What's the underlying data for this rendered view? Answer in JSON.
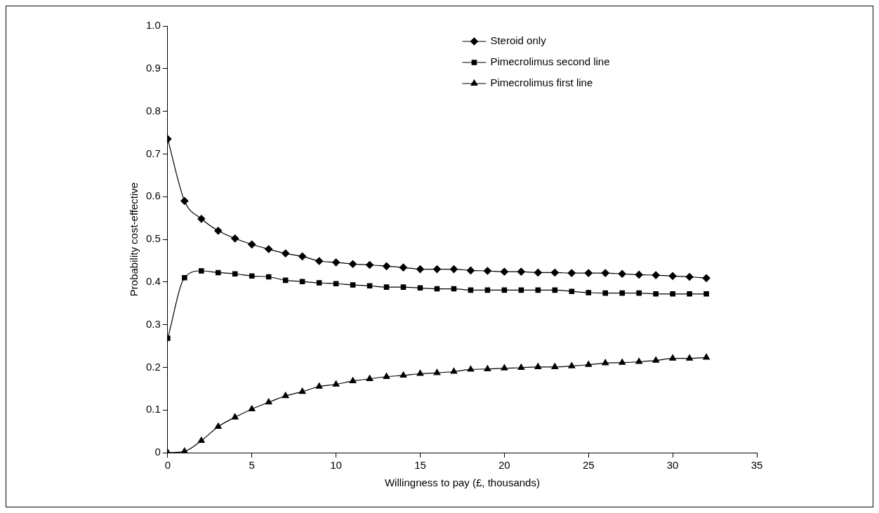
{
  "chart_data": {
    "type": "line",
    "xlabel": "Willingness to pay (£, thousands)",
    "ylabel": "Probability cost-effective",
    "x": [
      0,
      1,
      2,
      3,
      4,
      5,
      6,
      7,
      8,
      9,
      10,
      11,
      12,
      13,
      14,
      15,
      16,
      17,
      18,
      19,
      20,
      21,
      22,
      23,
      24,
      25,
      26,
      27,
      28,
      29,
      30,
      31,
      32
    ],
    "xlim": [
      0,
      35
    ],
    "xticks": [
      0,
      5,
      10,
      15,
      20,
      25,
      30,
      35
    ],
    "ylim": [
      0,
      1
    ],
    "yticks": [
      0,
      0.1,
      0.2,
      0.3,
      0.4,
      0.5,
      0.6,
      0.7,
      0.8,
      0.9,
      {
        "value": 1,
        "label": "1.0"
      }
    ],
    "grid": false,
    "legend": "top right",
    "series": [
      {
        "name": "Steroid only",
        "color": "#000000",
        "marker": "diamond",
        "values": [
          0.735,
          0.59,
          0.548,
          0.52,
          0.502,
          0.488,
          0.477,
          0.467,
          0.46,
          0.449,
          0.446,
          0.442,
          0.44,
          0.437,
          0.434,
          0.43,
          0.43,
          0.43,
          0.427,
          0.426,
          0.424,
          0.424,
          0.422,
          0.422,
          0.421,
          0.421,
          0.421,
          0.419,
          0.417,
          0.416,
          0.414,
          0.412,
          0.409
        ]
      },
      {
        "name": "Pimecrolimus second line",
        "color": "#000000",
        "marker": "square",
        "values": [
          0.268,
          0.41,
          0.426,
          0.422,
          0.419,
          0.414,
          0.412,
          0.404,
          0.401,
          0.398,
          0.396,
          0.393,
          0.391,
          0.388,
          0.388,
          0.386,
          0.384,
          0.384,
          0.381,
          0.381,
          0.381,
          0.381,
          0.381,
          0.381,
          0.378,
          0.375,
          0.374,
          0.374,
          0.374,
          0.372,
          0.372,
          0.372,
          0.372
        ]
      },
      {
        "name": "Pimecrolimus first line",
        "color": "#000000",
        "marker": "triangle",
        "values": [
          0,
          0.003,
          0.028,
          0.061,
          0.083,
          0.102,
          0.118,
          0.133,
          0.143,
          0.155,
          0.16,
          0.168,
          0.173,
          0.178,
          0.181,
          0.185,
          0.187,
          0.19,
          0.195,
          0.196,
          0.198,
          0.199,
          0.201,
          0.201,
          0.203,
          0.206,
          0.21,
          0.211,
          0.213,
          0.216,
          0.221,
          0.221,
          0.223
        ]
      }
    ]
  }
}
